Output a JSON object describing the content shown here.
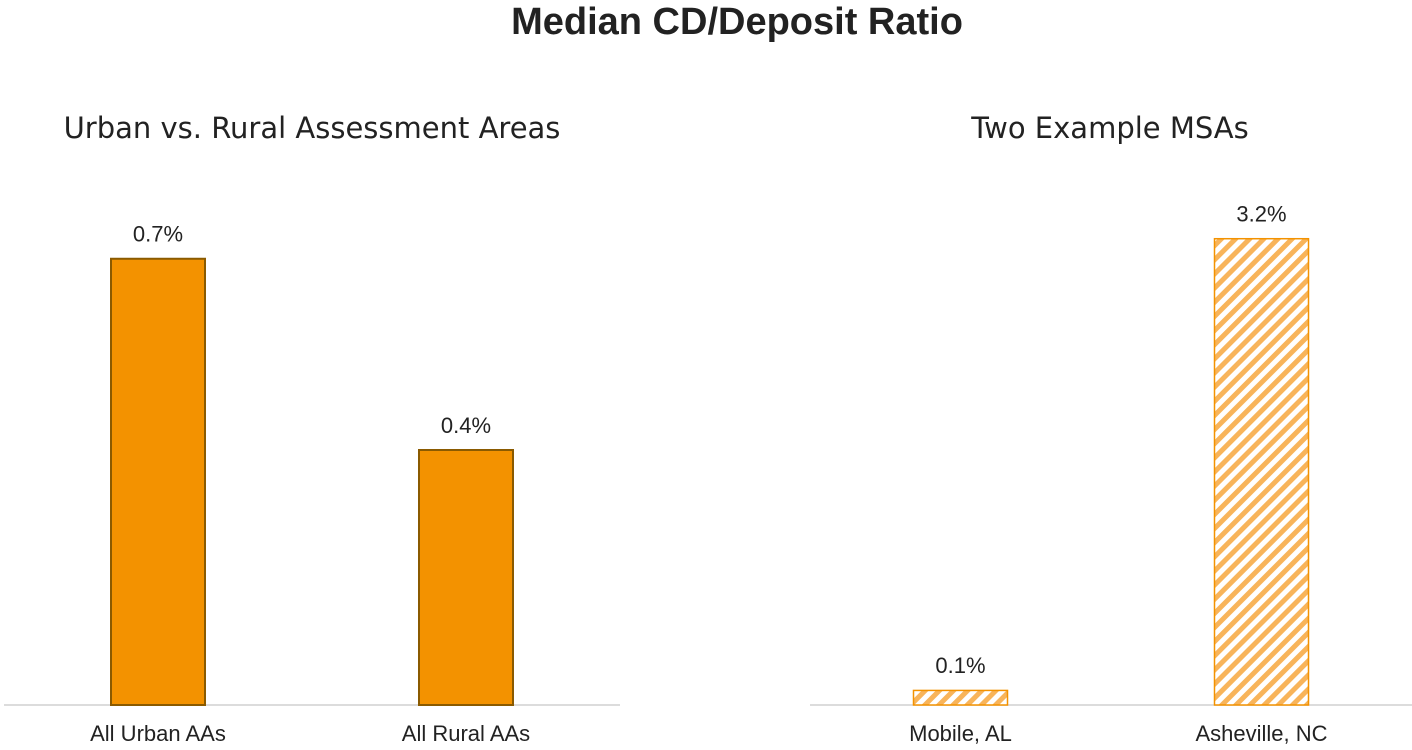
{
  "title": "Median CD/Deposit Ratio",
  "chart_data": [
    {
      "type": "bar",
      "title": "Urban vs. Rural Assessment Areas",
      "categories": [
        "All Urban AAs",
        "All Rural AAs"
      ],
      "values": [
        0.7,
        0.4
      ],
      "value_labels": [
        "0.7%",
        "0.4%"
      ],
      "color": "#f39200",
      "hatch": false,
      "ylim": [
        0,
        0.8
      ]
    },
    {
      "type": "bar",
      "title": "Two Example MSAs",
      "categories": [
        "Mobile, AL",
        "Asheville, NC"
      ],
      "values": [
        0.1,
        3.2
      ],
      "value_labels": [
        "0.1%",
        "3.2%"
      ],
      "color": "#f39200",
      "hatch": true,
      "ylim": [
        0,
        3.5
      ]
    }
  ]
}
